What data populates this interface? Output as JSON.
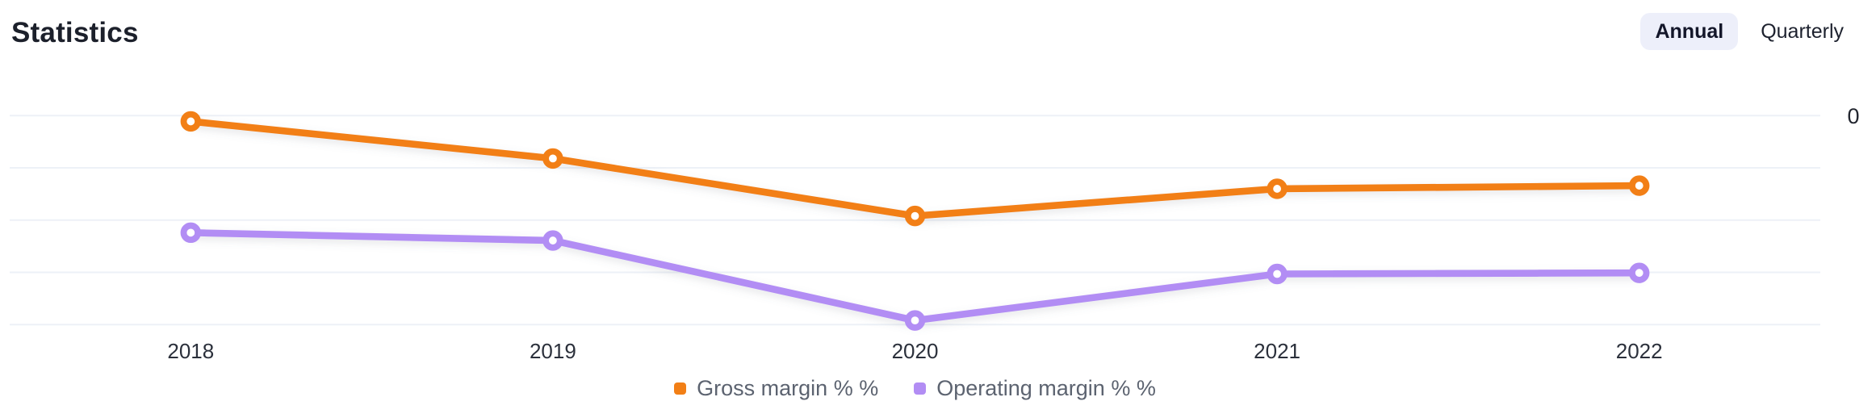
{
  "header": {
    "title": "Statistics",
    "period_toggle": {
      "options": [
        {
          "label": "Annual",
          "selected": true
        },
        {
          "label": "Quarterly",
          "selected": false
        }
      ]
    }
  },
  "chart_data": {
    "type": "line",
    "title": "Statistics",
    "categories": [
      "2018",
      "2019",
      "2020",
      "2021",
      "2022"
    ],
    "series": [
      {
        "name": "Gross margin % %",
        "color": "#f27f16",
        "values": [
          -0.11,
          -0.82,
          -1.92,
          -1.4,
          -1.34
        ]
      },
      {
        "name": "Operating margin % %",
        "color": "#b28df4",
        "values": [
          -2.24,
          -2.39,
          -3.92,
          -3.03,
          -3.01
        ]
      }
    ],
    "x_axis": {
      "labels": [
        "2018",
        "2019",
        "2020",
        "2021",
        "2022"
      ]
    },
    "y_axis": {
      "tick_labels": [
        "0"
      ],
      "tick_side": "right",
      "tick_at": "top-gridline",
      "gridline_count": 5,
      "unit": "unlabeled gridline steps below the 0 line"
    },
    "grid": true,
    "legend": [
      "Gross margin % %",
      "Operating margin % %"
    ],
    "legend_position": "bottom-center",
    "colors": {
      "gridline": "#edf1f7",
      "x_label": "#2b303b",
      "y_label": "#22262f",
      "marker_fill": "#ffffff"
    }
  }
}
